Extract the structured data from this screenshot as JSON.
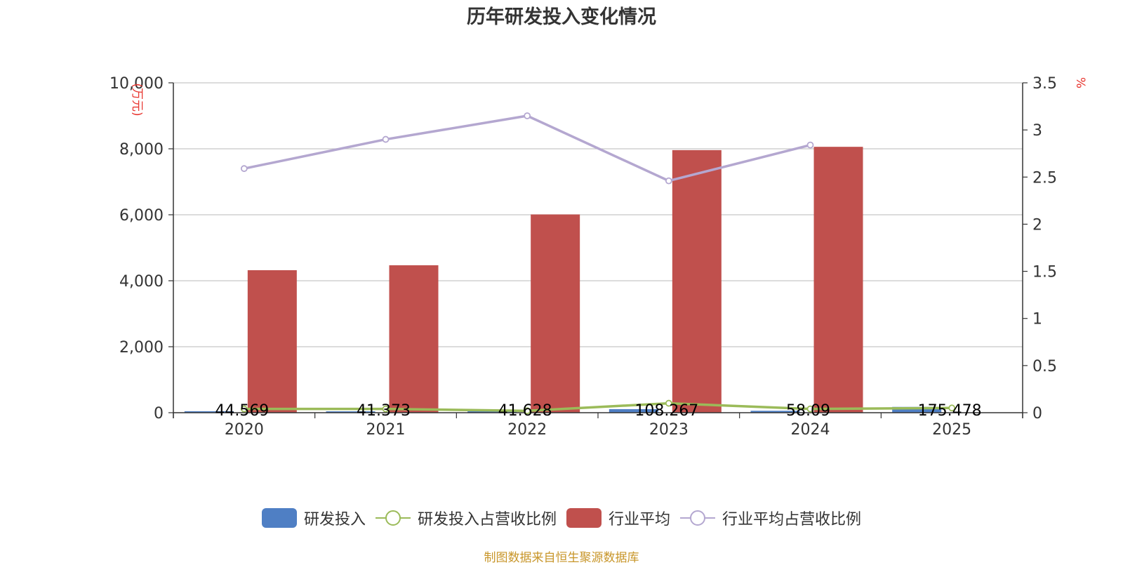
{
  "chart_data": {
    "type": "bar",
    "title": "历年研发投入变化情况",
    "categories": [
      "2020",
      "2021",
      "2022",
      "2023",
      "2024",
      "2025"
    ],
    "y_left": {
      "unit": "(万元)",
      "ylim": [
        0,
        10000
      ],
      "ticks": [
        "0",
        "2,000",
        "4,000",
        "6,000",
        "8,000",
        "10,000"
      ]
    },
    "y_right": {
      "unit": "%",
      "ylim": [
        0,
        3.5
      ],
      "ticks": [
        "0",
        "0.5",
        "1",
        "1.5",
        "2",
        "2.5",
        "3",
        "3.5"
      ]
    },
    "series": [
      {
        "name": "研发投入",
        "type": "bar",
        "axis": "left",
        "color": "#4f7fc4",
        "values": [
          44.569,
          41.373,
          41.628,
          108.267,
          58.09,
          175.478
        ],
        "labels": [
          "44.569",
          "41.373",
          "41.628",
          "108.267",
          "58.09",
          "175.478"
        ]
      },
      {
        "name": "研发投入占营收比例",
        "type": "line",
        "axis": "right",
        "color": "#9bbb59",
        "values": [
          0.04,
          0.04,
          0.02,
          0.1,
          0.04,
          0.05
        ]
      },
      {
        "name": "行业平均",
        "type": "bar",
        "axis": "left",
        "color": "#c0504d",
        "values": [
          4320,
          4470,
          6010,
          7960,
          8060,
          null
        ]
      },
      {
        "name": "行业平均占营收比例",
        "type": "line",
        "axis": "right",
        "color": "#b4a7d0",
        "values": [
          2.59,
          2.9,
          3.15,
          2.46,
          2.84,
          null
        ]
      }
    ],
    "grid": true,
    "legend_position": "bottom-center"
  },
  "source_note": "制图数据来自恒生聚源数据库"
}
